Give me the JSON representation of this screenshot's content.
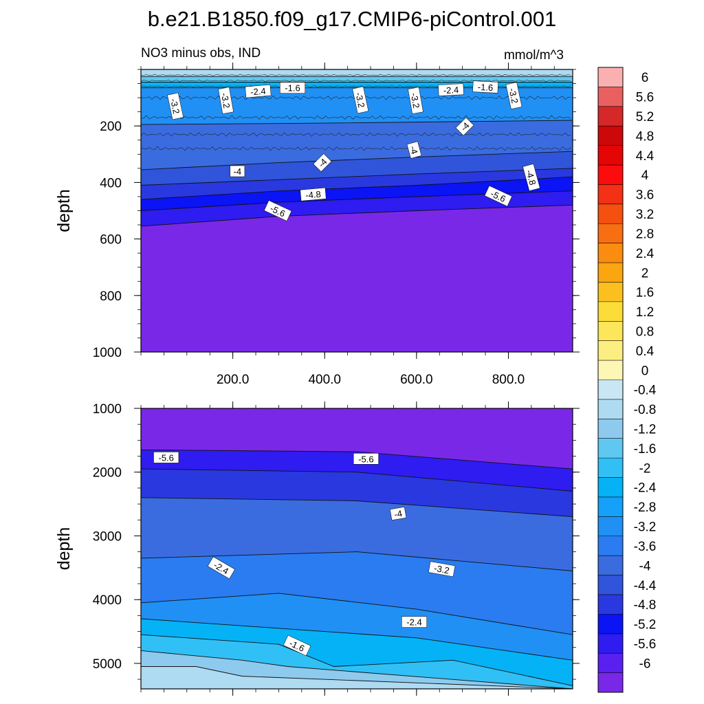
{
  "title": "b.e21.B1850.f09_g17.CMIP6-piControl.001",
  "subtitle_left": "NO3 minus obs, IND",
  "subtitle_right": "mmol/m^3",
  "colors": {
    "levels": [
      -6,
      -5.6,
      -5.2,
      -4.8,
      -4.4,
      -4,
      -3.6,
      -3.2,
      -2.8,
      -2.4,
      -2,
      -1.6,
      -1.2,
      -0.8,
      -0.4,
      0,
      0.4,
      0.8,
      1.2,
      1.6,
      2,
      2.4,
      2.8,
      3.2,
      3.6,
      4,
      4.4,
      4.8,
      5.2,
      5.6,
      6
    ],
    "fills": [
      "#7a28e8",
      "#5a20f0",
      "#2e1cf0",
      "#0a14f5",
      "#2a38e0",
      "#3055da",
      "#3a6ce0",
      "#2a7cf0",
      "#2090f5",
      "#15a0fa",
      "#05b2f6",
      "#30c0f5",
      "#5ec8f0",
      "#8ecaee",
      "#aedaf2",
      "#c8e6f4",
      "#fef6b4",
      "#fdee82",
      "#fde65a",
      "#fcdc38",
      "#fbc020",
      "#fba510",
      "#fa8c10",
      "#f86e12",
      "#f45010",
      "#f43015",
      "#fc0c0c",
      "#e40505",
      "#cd0808",
      "#d52828",
      "#e86060",
      "#fab0b0"
    ]
  },
  "chart_data": [
    {
      "type": "contour",
      "name": "upper",
      "xlabel": "",
      "ylabel": "depth",
      "xlim": [
        0,
        940
      ],
      "ylim": [
        1000,
        0
      ],
      "xticks": [
        200,
        400,
        600,
        800
      ],
      "xticklabels": [
        "200.0",
        "400.0",
        "600.0",
        "800.0"
      ],
      "yticks": [
        200,
        400,
        600,
        800,
        1000
      ],
      "yticklabels": [
        "200",
        "400",
        "600",
        "800",
        "1000"
      ],
      "bands": [
        {
          "value": -0.4,
          "top": [
            [
              0,
              0
            ],
            [
              940,
              0
            ]
          ],
          "bottom": [
            [
              0,
              25
            ],
            [
              940,
              25
            ]
          ]
        },
        {
          "value": -1.2,
          "top": [
            [
              0,
              25
            ],
            [
              940,
              25
            ]
          ],
          "bottom": [
            [
              0,
              45
            ],
            [
              940,
              45
            ]
          ]
        },
        {
          "value": -2.0,
          "top": [
            [
              0,
              45
            ],
            [
              940,
              45
            ]
          ],
          "bottom": [
            [
              0,
              65
            ],
            [
              940,
              65
            ]
          ]
        },
        {
          "value": -2.8,
          "top": [
            [
              0,
              65
            ],
            [
              940,
              65
            ]
          ],
          "bottom": [
            [
              0,
              195
            ],
            [
              400,
              190
            ],
            [
              940,
              180
            ]
          ]
        },
        {
          "value": -3.6,
          "top": [
            [
              0,
              195
            ],
            [
              400,
              190
            ],
            [
              940,
              180
            ]
          ],
          "bottom": [
            [
              0,
              355
            ],
            [
              300,
              330
            ],
            [
              600,
              310
            ],
            [
              940,
              290
            ]
          ]
        },
        {
          "value": -4.0,
          "top": [
            [
              0,
              355
            ],
            [
              300,
              330
            ],
            [
              600,
              310
            ],
            [
              940,
              290
            ]
          ],
          "bottom": [
            [
              0,
              410
            ],
            [
              300,
              390
            ],
            [
              600,
              370
            ],
            [
              940,
              350
            ]
          ]
        },
        {
          "value": -4.6,
          "top": [
            [
              0,
              410
            ],
            [
              300,
              390
            ],
            [
              600,
              370
            ],
            [
              940,
              350
            ]
          ],
          "bottom": [
            [
              0,
              460
            ],
            [
              300,
              430
            ],
            [
              600,
              410
            ],
            [
              940,
              380
            ]
          ]
        },
        {
          "value": -5.0,
          "top": [
            [
              0,
              460
            ],
            [
              300,
              430
            ],
            [
              600,
              410
            ],
            [
              940,
              380
            ]
          ],
          "bottom": [
            [
              0,
              500
            ],
            [
              300,
              470
            ],
            [
              600,
              450
            ],
            [
              940,
              430
            ]
          ]
        },
        {
          "value": -5.4,
          "top": [
            [
              0,
              500
            ],
            [
              300,
              470
            ],
            [
              600,
              450
            ],
            [
              940,
              430
            ]
          ],
          "bottom": [
            [
              0,
              555
            ],
            [
              300,
              520
            ],
            [
              600,
              500
            ],
            [
              940,
              480
            ]
          ]
        },
        {
          "value": -6.0,
          "top": [
            [
              0,
              555
            ],
            [
              300,
              520
            ],
            [
              600,
              500
            ],
            [
              940,
              480
            ]
          ],
          "bottom": [
            [
              0,
              1000
            ],
            [
              940,
              1000
            ]
          ]
        }
      ],
      "labels": [
        {
          "text": "-3.2",
          "x": 75,
          "y": 130,
          "rot": 78
        },
        {
          "text": "-3.2",
          "x": 185,
          "y": 110,
          "rot": 80
        },
        {
          "text": "-2.4",
          "x": 255,
          "y": 77,
          "rot": -5
        },
        {
          "text": "-1.6",
          "x": 330,
          "y": 65,
          "rot": 0
        },
        {
          "text": "-3.2",
          "x": 478,
          "y": 108,
          "rot": 78
        },
        {
          "text": "-3.2",
          "x": 598,
          "y": 110,
          "rot": 80
        },
        {
          "text": "-2.4",
          "x": 675,
          "y": 72,
          "rot": -3
        },
        {
          "text": "-1.6",
          "x": 750,
          "y": 62,
          "rot": 3
        },
        {
          "text": "-3.2",
          "x": 812,
          "y": 93,
          "rot": 78
        },
        {
          "text": "-4",
          "x": 705,
          "y": 202,
          "rot": -45
        },
        {
          "text": "-4",
          "x": 595,
          "y": 285,
          "rot": 75
        },
        {
          "text": "-4",
          "x": 395,
          "y": 330,
          "rot": -45
        },
        {
          "text": "-4",
          "x": 210,
          "y": 360,
          "rot": 0
        },
        {
          "text": "-4.8",
          "x": 375,
          "y": 442,
          "rot": -5
        },
        {
          "text": "-4.8",
          "x": 850,
          "y": 382,
          "rot": 75
        },
        {
          "text": "-5.6",
          "x": 298,
          "y": 500,
          "rot": 25
        },
        {
          "text": "-5.6",
          "x": 778,
          "y": 448,
          "rot": 25
        }
      ]
    },
    {
      "type": "contour",
      "name": "lower",
      "xlabel": "",
      "ylabel": "depth",
      "xlim": [
        0,
        940
      ],
      "ylim": [
        5400,
        1000
      ],
      "xticks": [
        200,
        400,
        600,
        800
      ],
      "yticks": [
        1000,
        2000,
        3000,
        4000,
        5000
      ],
      "yticklabels": [
        "1000",
        "2000",
        "3000",
        "4000",
        "5000"
      ],
      "bands": [
        {
          "value": -6.0,
          "top": [
            [
              0,
              1000
            ],
            [
              940,
              1000
            ]
          ],
          "bottom": [
            [
              0,
              1650
            ],
            [
              470,
              1680
            ],
            [
              940,
              1950
            ]
          ]
        },
        {
          "value": -5.4,
          "top": [
            [
              0,
              1650
            ],
            [
              470,
              1680
            ],
            [
              940,
              1950
            ]
          ],
          "bottom": [
            [
              0,
              1950
            ],
            [
              470,
              2000
            ],
            [
              940,
              2300
            ]
          ]
        },
        {
          "value": -4.6,
          "top": [
            [
              0,
              1950
            ],
            [
              470,
              2000
            ],
            [
              940,
              2300
            ]
          ],
          "bottom": [
            [
              0,
              2400
            ],
            [
              470,
              2450
            ],
            [
              940,
              2700
            ]
          ]
        },
        {
          "value": -3.8,
          "top": [
            [
              0,
              2400
            ],
            [
              470,
              2450
            ],
            [
              940,
              2700
            ]
          ],
          "bottom": [
            [
              0,
              3350
            ],
            [
              470,
              3250
            ],
            [
              940,
              3550
            ]
          ]
        },
        {
          "value": -3.2,
          "top": [
            [
              0,
              3350
            ],
            [
              470,
              3250
            ],
            [
              940,
              3550
            ]
          ],
          "bottom": [
            [
              0,
              4050
            ],
            [
              300,
              3900
            ],
            [
              600,
              4150
            ],
            [
              940,
              4550
            ]
          ]
        },
        {
          "value": -2.8,
          "top": [
            [
              0,
              4050
            ],
            [
              300,
              3900
            ],
            [
              600,
              4150
            ],
            [
              940,
              4550
            ]
          ],
          "bottom": [
            [
              0,
              4300
            ],
            [
              300,
              4450
            ],
            [
              600,
              4600
            ],
            [
              940,
              4950
            ]
          ]
        },
        {
          "value": -2.2,
          "top": [
            [
              0,
              4300
            ],
            [
              300,
              4450
            ],
            [
              600,
              4600
            ],
            [
              940,
              4950
            ]
          ],
          "bottom": [
            [
              0,
              4550
            ],
            [
              300,
              4700
            ],
            [
              420,
              5050
            ],
            [
              680,
              4950
            ],
            [
              940,
              5350
            ]
          ]
        },
        {
          "value": -1.6,
          "top": [
            [
              0,
              4550
            ],
            [
              300,
              4700
            ],
            [
              420,
              5050
            ],
            [
              680,
              4950
            ],
            [
              940,
              5350
            ]
          ],
          "bottom": [
            [
              0,
              4800
            ],
            [
              220,
              4950
            ],
            [
              320,
              5050
            ],
            [
              940,
              5400
            ]
          ]
        },
        {
          "value": -1.0,
          "top": [
            [
              0,
              4800
            ],
            [
              220,
              4950
            ],
            [
              320,
              5050
            ],
            [
              940,
              5400
            ]
          ],
          "bottom": [
            [
              0,
              5050
            ],
            [
              120,
              5050
            ],
            [
              220,
              5200
            ],
            [
              940,
              5400
            ]
          ]
        },
        {
          "value": -0.6,
          "top": [
            [
              0,
              5050
            ],
            [
              120,
              5050
            ],
            [
              220,
              5200
            ],
            [
              940,
              5400
            ]
          ],
          "bottom": [
            [
              0,
              5400
            ],
            [
              940,
              5400
            ]
          ]
        }
      ],
      "labels": [
        {
          "text": "-5.6",
          "x": 55,
          "y": 1770,
          "rot": 0
        },
        {
          "text": "-5.6",
          "x": 490,
          "y": 1790,
          "rot": 0
        },
        {
          "text": "-4",
          "x": 560,
          "y": 2650,
          "rot": -10
        },
        {
          "text": "-2.4",
          "x": 175,
          "y": 3500,
          "rot": 30
        },
        {
          "text": "-3.2",
          "x": 655,
          "y": 3520,
          "rot": 10
        },
        {
          "text": "-2.4",
          "x": 595,
          "y": 4350,
          "rot": 0
        },
        {
          "text": "-1.6",
          "x": 340,
          "y": 4720,
          "rot": 25
        }
      ]
    }
  ],
  "colorbar": {
    "ticklabels": [
      "6",
      "5.6",
      "5.2",
      "4.8",
      "4.4",
      "4",
      "3.6",
      "3.2",
      "2.8",
      "2.4",
      "2",
      "1.6",
      "1.2",
      "0.8",
      "0.4",
      "0",
      "-0.4",
      "-0.8",
      "-1.2",
      "-1.6",
      "-2",
      "-2.4",
      "-2.8",
      "-3.2",
      "-3.6",
      "-4",
      "-4.4",
      "-4.8",
      "-5.2",
      "-5.6",
      "-6"
    ]
  }
}
